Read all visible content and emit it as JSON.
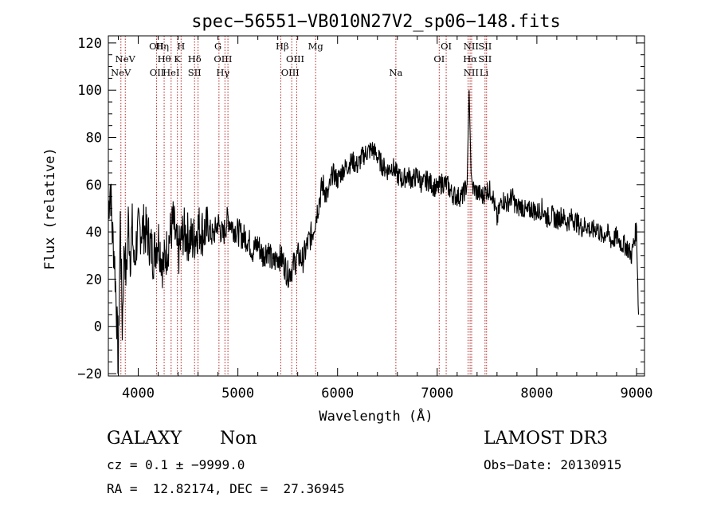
{
  "chart_data": {
    "type": "line",
    "title": "spec−56551−VB010N27V2_sp06−148.fits",
    "xlabel": "Wavelength (Å)",
    "ylabel": "Flux (relative)",
    "xlim": [
      3700,
      9080
    ],
    "ylim": [
      -21,
      123
    ],
    "x_ticks": [
      4000,
      5000,
      6000,
      7000,
      8000,
      9000
    ],
    "y_ticks": [
      -20,
      0,
      20,
      40,
      60,
      80,
      100,
      120
    ],
    "x_tick_labels": [
      "4000",
      "5000",
      "6000",
      "7000",
      "8000",
      "9000"
    ],
    "y_tick_labels": [
      "−20",
      "0",
      "20",
      "40",
      "60",
      "80",
      "100",
      "120"
    ],
    "series": [
      {
        "color": "#000000",
        "x": [
          3700,
          3720,
          3740,
          3760,
          3780,
          3800,
          3820,
          3840,
          3860,
          3880,
          3900,
          3920,
          3940,
          3960,
          3980,
          4000,
          4050,
          4100,
          4150,
          4200,
          4250,
          4300,
          4350,
          4400,
          4450,
          4500,
          4550,
          4600,
          4650,
          4700,
          4750,
          4800,
          4850,
          4900,
          4950,
          5000,
          5050,
          5100,
          5150,
          5200,
          5250,
          5300,
          5350,
          5400,
          5450,
          5500,
          5550,
          5600,
          5650,
          5700,
          5750,
          5800,
          5850,
          5900,
          5950,
          6000,
          6050,
          6100,
          6150,
          6200,
          6250,
          6300,
          6350,
          6400,
          6450,
          6500,
          6550,
          6600,
          6650,
          6700,
          6750,
          6800,
          6850,
          6900,
          6950,
          7000,
          7050,
          7100,
          7150,
          7200,
          7250,
          7300,
          7320,
          7340,
          7360,
          7400,
          7450,
          7500,
          7550,
          7600,
          7650,
          7700,
          7750,
          7800,
          7850,
          7900,
          7950,
          8000,
          8050,
          8100,
          8150,
          8200,
          8250,
          8300,
          8350,
          8400,
          8450,
          8500,
          8550,
          8600,
          8650,
          8700,
          8750,
          8800,
          8850,
          8900,
          8950,
          9000,
          9020
        ],
        "y": [
          50,
          60,
          40,
          30,
          10,
          -18,
          45,
          0,
          35,
          20,
          45,
          30,
          42,
          25,
          35,
          40,
          42,
          38,
          30,
          38,
          25,
          35,
          44,
          30,
          40,
          38,
          36,
          42,
          40,
          41,
          38,
          44,
          38,
          46,
          42,
          40,
          38,
          37,
          32,
          35,
          30,
          33,
          26,
          30,
          28,
          22,
          25,
          30,
          28,
          35,
          40,
          50,
          60,
          55,
          65,
          62,
          66,
          68,
          70,
          68,
          72,
          74,
          75,
          72,
          68,
          66,
          68,
          64,
          62,
          64,
          62,
          64,
          60,
          62,
          60,
          58,
          61,
          60,
          56,
          55,
          55,
          60,
          100,
          65,
          58,
          57,
          55,
          58,
          57,
          45,
          54,
          52,
          55,
          50,
          51,
          48,
          50,
          48,
          50,
          46,
          47,
          45,
          47,
          44,
          46,
          44,
          42,
          43,
          40,
          42,
          38,
          40,
          36,
          38,
          35,
          34,
          30,
          42,
          5
        ]
      }
    ],
    "lines": [
      {
        "label": "NeV",
        "wavelength": 3826,
        "row": 2
      },
      {
        "label": "NeV",
        "wavelength": 3870,
        "row": 1
      },
      {
        "label": "OII",
        "wavelength": 4183,
        "row": 0
      },
      {
        "label": "OII",
        "wavelength": 4188,
        "row": 3
      },
      {
        "label": "Hη",
        "wavelength": 4240,
        "row": 0
      },
      {
        "label": "Hθ",
        "wavelength": 4260,
        "row": 1
      },
      {
        "label": "HeI",
        "wavelength": 4330,
        "row": 3
      },
      {
        "label": "K",
        "wavelength": 4393,
        "row": 1
      },
      {
        "label": "H",
        "wavelength": 4430,
        "row": 0
      },
      {
        "label": "Hδ",
        "wavelength": 4565,
        "row": 1
      },
      {
        "label": "SII",
        "wavelength": 4565,
        "row": 3
      },
      {
        "label": "G",
        "wavelength": 4800,
        "row": 0
      },
      {
        "label": "OIII",
        "wavelength": 4850,
        "row": 1
      },
      {
        "label": "Hγ",
        "wavelength": 4850,
        "row": 2
      },
      {
        "label": "Hβ",
        "wavelength": 5445,
        "row": 0
      },
      {
        "label": "OIII",
        "wavelength": 5575,
        "row": 1
      },
      {
        "label": "OIII",
        "wavelength": 5525,
        "row": 2
      },
      {
        "label": "Mg",
        "wavelength": 5780,
        "row": 0
      },
      {
        "label": "Na",
        "wavelength": 6585,
        "row": 2
      },
      {
        "label": "OI",
        "wavelength": 7090,
        "row": 0
      },
      {
        "label": "OI",
        "wavelength": 7020,
        "row": 1
      },
      {
        "label": "NII",
        "wavelength": 7340,
        "row": 0
      },
      {
        "label": "Hα",
        "wavelength": 7330,
        "row": 1
      },
      {
        "label": "NII",
        "wavelength": 7340,
        "row": 2
      },
      {
        "label": "SII",
        "wavelength": 7480,
        "row": 0
      },
      {
        "label": "SII",
        "wavelength": 7480,
        "row": 1
      },
      {
        "label": "Li",
        "wavelength": 7470,
        "row": 2
      }
    ],
    "line_wavelengths": [
      3826,
      3870,
      4183,
      4260,
      4330,
      4393,
      4430,
      4565,
      4600,
      4810,
      4870,
      4900,
      5430,
      5540,
      5590,
      5780,
      6585,
      7020,
      7090,
      7310,
      7330,
      7345,
      7480,
      7495
    ],
    "grid": false
  },
  "info": {
    "class_label": "GALAXY",
    "subclass_label": "Non",
    "survey_label": "LAMOST DR3",
    "cz_text": "cz = 0.1 ± −9999.0",
    "obs_date_text": "Obs−Date: 20130915",
    "radec_text": "RA =  12.82174, DEC =  27.36945"
  },
  "colors": {
    "spectrum": "#000000",
    "line_markers": "#b22222",
    "axes": "#000000"
  }
}
